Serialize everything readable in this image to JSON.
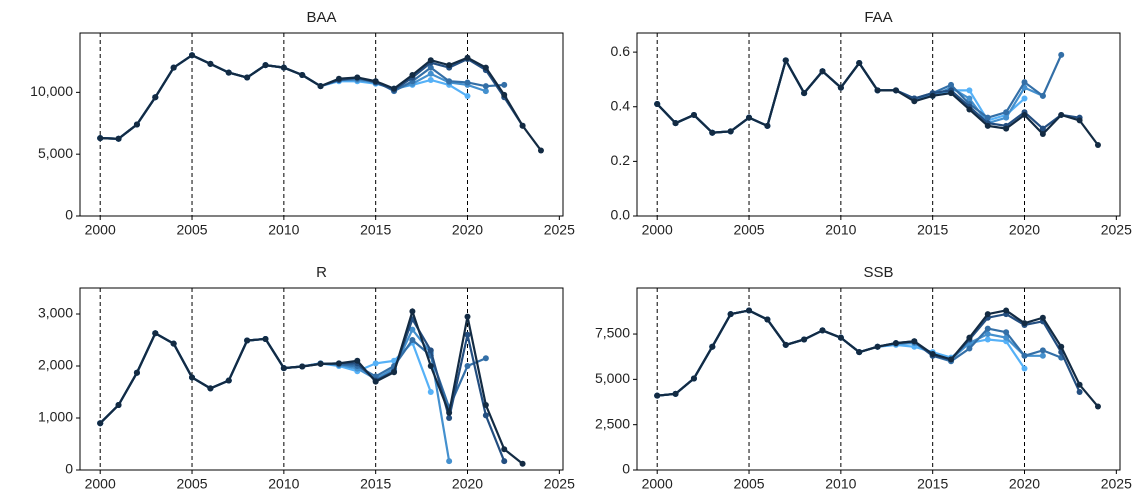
{
  "chart_data": [
    {
      "type": "line",
      "title": "BAA",
      "x": [
        2000,
        2001,
        2002,
        2003,
        2004,
        2005,
        2006,
        2007,
        2008,
        2009,
        2010,
        2011,
        2012,
        2013,
        2014,
        2015,
        2016,
        2017,
        2018,
        2019,
        2020,
        2021,
        2022,
        2023,
        2024
      ],
      "xlim": [
        1998.9,
        2025.2
      ],
      "xticks": [
        2000,
        2005,
        2010,
        2015,
        2020,
        2025
      ],
      "vlines": [
        2000,
        2005,
        2010,
        2015,
        2020
      ],
      "ylim": [
        0,
        14800
      ],
      "yticks": [
        0,
        {
          "value": 5000,
          "label": "5,000"
        },
        {
          "value": 10000,
          "label": "10,000"
        }
      ],
      "series": [
        {
          "color": "#56B1F7",
          "values": [
            6300,
            6250,
            7400,
            9600,
            12000,
            13000,
            12300,
            11600,
            11200,
            12200,
            12000,
            11400,
            10500,
            10900,
            10900,
            10700,
            10300,
            10600,
            11000,
            10600,
            9700,
            null,
            null,
            null,
            null
          ]
        },
        {
          "color": "#4490CE",
          "values": [
            6300,
            6250,
            7400,
            9600,
            12000,
            13000,
            12300,
            11600,
            11200,
            12200,
            12000,
            11400,
            10500,
            11000,
            11000,
            10800,
            10200,
            10700,
            11500,
            10800,
            10600,
            10100,
            null,
            null,
            null
          ]
        },
        {
          "color": "#336FA7",
          "values": [
            6300,
            6250,
            7400,
            9600,
            12000,
            13000,
            12300,
            11600,
            11200,
            12200,
            12000,
            11400,
            10500,
            11000,
            11100,
            10900,
            10100,
            10900,
            12000,
            10900,
            10800,
            10500,
            10600,
            null,
            null
          ]
        },
        {
          "color": "#234E80",
          "values": [
            6300,
            6250,
            7400,
            9600,
            12000,
            13000,
            12300,
            11600,
            11200,
            12200,
            12000,
            11400,
            10500,
            11000,
            11200,
            10800,
            10200,
            11200,
            12400,
            12000,
            12700,
            11800,
            9600,
            7300,
            null
          ]
        },
        {
          "color": "#132B43",
          "values": [
            6300,
            6250,
            7400,
            9600,
            12000,
            13000,
            12300,
            11600,
            11200,
            12200,
            12000,
            11400,
            10500,
            11100,
            11200,
            10900,
            10300,
            11400,
            12600,
            12200,
            12800,
            12000,
            9800,
            7300,
            5300
          ]
        }
      ]
    },
    {
      "type": "line",
      "title": "FAA",
      "x": [
        2000,
        2001,
        2002,
        2003,
        2004,
        2005,
        2006,
        2007,
        2008,
        2009,
        2010,
        2011,
        2012,
        2013,
        2014,
        2015,
        2016,
        2017,
        2018,
        2019,
        2020,
        2021,
        2022,
        2023,
        2024
      ],
      "xlim": [
        1998.9,
        2025.2
      ],
      "xticks": [
        2000,
        2005,
        2010,
        2015,
        2020,
        2025
      ],
      "vlines": [
        2000,
        2005,
        2010,
        2015,
        2020
      ],
      "ylim": [
        0,
        0.67
      ],
      "yticks": [
        {
          "value": 0,
          "label": "0.0"
        },
        0.2,
        0.4,
        0.6
      ],
      "series": [
        {
          "color": "#56B1F7",
          "values": [
            0.41,
            0.34,
            0.37,
            0.305,
            0.31,
            0.36,
            0.33,
            0.57,
            0.45,
            0.53,
            0.47,
            0.56,
            0.46,
            0.46,
            0.43,
            0.44,
            0.46,
            0.46,
            0.35,
            0.37,
            0.43,
            null,
            null,
            null,
            null
          ]
        },
        {
          "color": "#4490CE",
          "values": [
            0.41,
            0.34,
            0.37,
            0.305,
            0.31,
            0.36,
            0.33,
            0.57,
            0.45,
            0.53,
            0.47,
            0.56,
            0.46,
            0.46,
            0.43,
            0.44,
            0.47,
            0.43,
            0.34,
            0.36,
            0.47,
            0.44,
            null,
            null,
            null
          ]
        },
        {
          "color": "#336FA7",
          "values": [
            0.41,
            0.34,
            0.37,
            0.305,
            0.31,
            0.36,
            0.33,
            0.57,
            0.45,
            0.53,
            0.47,
            0.56,
            0.46,
            0.46,
            0.43,
            0.45,
            0.48,
            0.41,
            0.36,
            0.38,
            0.49,
            0.44,
            0.59,
            null,
            null
          ]
        },
        {
          "color": "#234E80",
          "values": [
            0.41,
            0.34,
            0.37,
            0.305,
            0.31,
            0.36,
            0.33,
            0.57,
            0.45,
            0.53,
            0.47,
            0.56,
            0.46,
            0.46,
            0.43,
            0.45,
            0.46,
            0.4,
            0.34,
            0.33,
            0.38,
            0.32,
            0.37,
            0.36,
            null
          ]
        },
        {
          "color": "#132B43",
          "values": [
            0.41,
            0.34,
            0.37,
            0.305,
            0.31,
            0.36,
            0.33,
            0.57,
            0.45,
            0.53,
            0.47,
            0.56,
            0.46,
            0.46,
            0.42,
            0.44,
            0.45,
            0.39,
            0.33,
            0.32,
            0.37,
            0.3,
            0.37,
            0.35,
            0.26
          ]
        }
      ]
    },
    {
      "type": "line",
      "title": "R",
      "x": [
        2000,
        2001,
        2002,
        2003,
        2004,
        2005,
        2006,
        2007,
        2008,
        2009,
        2010,
        2011,
        2012,
        2013,
        2014,
        2015,
        2016,
        2017,
        2018,
        2019,
        2020,
        2021,
        2022,
        2023,
        2024
      ],
      "xlim": [
        1998.9,
        2025.2
      ],
      "xticks": [
        2000,
        2005,
        2010,
        2015,
        2020,
        2025
      ],
      "vlines": [
        2000,
        2005,
        2010,
        2015,
        2020
      ],
      "ylim": [
        0,
        3500
      ],
      "yticks": [
        0,
        {
          "value": 1000,
          "label": "1,000"
        },
        {
          "value": 2000,
          "label": "2,000"
        },
        {
          "value": 3000,
          "label": "3,000"
        }
      ],
      "series": [
        {
          "color": "#56B1F7",
          "values": [
            900,
            1250,
            1870,
            2630,
            2430,
            1780,
            1570,
            1720,
            2490,
            2520,
            1960,
            1990,
            2050,
            2000,
            1900,
            2050,
            2100,
            2450,
            1500,
            null,
            null,
            null,
            null,
            null,
            null
          ]
        },
        {
          "color": "#4490CE",
          "values": [
            900,
            1250,
            1870,
            2630,
            2430,
            1780,
            1570,
            1720,
            2490,
            2520,
            1960,
            1990,
            2050,
            2020,
            1950,
            1750,
            1950,
            2700,
            2250,
            170,
            null,
            null,
            null,
            null,
            null
          ]
        },
        {
          "color": "#336FA7",
          "values": [
            900,
            1250,
            1870,
            2630,
            2430,
            1780,
            1570,
            1720,
            2490,
            2520,
            1960,
            1990,
            2050,
            2030,
            2000,
            1800,
            2000,
            2500,
            2200,
            1200,
            2000,
            2150,
            null,
            null,
            null
          ]
        },
        {
          "color": "#234E80",
          "values": [
            900,
            1250,
            1870,
            2630,
            2430,
            1780,
            1570,
            1720,
            2490,
            2520,
            1960,
            1990,
            2040,
            2050,
            2050,
            1720,
            1900,
            2900,
            2300,
            1000,
            2600,
            1050,
            170,
            null,
            null
          ]
        },
        {
          "color": "#132B43",
          "values": [
            900,
            1250,
            1870,
            2630,
            2430,
            1780,
            1570,
            1720,
            2490,
            2520,
            1960,
            1990,
            2040,
            2050,
            2100,
            1700,
            1880,
            3050,
            2000,
            1100,
            2950,
            1250,
            400,
            120,
            null
          ]
        }
      ]
    },
    {
      "type": "line",
      "title": "SSB",
      "x": [
        2000,
        2001,
        2002,
        2003,
        2004,
        2005,
        2006,
        2007,
        2008,
        2009,
        2010,
        2011,
        2012,
        2013,
        2014,
        2015,
        2016,
        2017,
        2018,
        2019,
        2020,
        2021,
        2022,
        2023,
        2024
      ],
      "xlim": [
        1998.9,
        2025.2
      ],
      "xticks": [
        2000,
        2005,
        2010,
        2015,
        2020,
        2025
      ],
      "vlines": [
        2000,
        2005,
        2010,
        2015,
        2020
      ],
      "ylim": [
        0,
        10040
      ],
      "yticks": [
        0,
        {
          "value": 2500,
          "label": "2,500"
        },
        {
          "value": 5000,
          "label": "5,000"
        },
        {
          "value": 7500,
          "label": "7,500"
        }
      ],
      "series": [
        {
          "color": "#56B1F7",
          "values": [
            4100,
            4200,
            5050,
            6800,
            8600,
            8800,
            8300,
            6900,
            7200,
            7700,
            7300,
            6500,
            6800,
            6900,
            6800,
            6500,
            6200,
            7000,
            7200,
            7100,
            5600,
            null,
            null,
            null,
            null
          ]
        },
        {
          "color": "#4490CE",
          "values": [
            4100,
            4200,
            5050,
            6800,
            8600,
            8800,
            8300,
            6900,
            7200,
            7700,
            7300,
            6500,
            6800,
            6950,
            7000,
            6400,
            6100,
            7000,
            7500,
            7300,
            6300,
            6300,
            null,
            null,
            null
          ]
        },
        {
          "color": "#336FA7",
          "values": [
            4100,
            4200,
            5050,
            6800,
            8600,
            8800,
            8300,
            6900,
            7200,
            7700,
            7300,
            6500,
            6800,
            7000,
            7050,
            6300,
            6000,
            6700,
            7800,
            7600,
            6300,
            6600,
            6200,
            null,
            null
          ]
        },
        {
          "color": "#234E80",
          "values": [
            4100,
            4200,
            5050,
            6800,
            8600,
            8800,
            8300,
            6900,
            7200,
            7700,
            7300,
            6500,
            6800,
            7000,
            7100,
            6300,
            6100,
            7200,
            8400,
            8600,
            8000,
            8200,
            6500,
            4300,
            null
          ]
        },
        {
          "color": "#132B43",
          "values": [
            4100,
            4200,
            5050,
            6800,
            8600,
            8800,
            8300,
            6900,
            7200,
            7700,
            7300,
            6500,
            6800,
            7000,
            7100,
            6400,
            6100,
            7300,
            8600,
            8800,
            8100,
            8400,
            6800,
            4700,
            3500
          ]
        }
      ]
    }
  ]
}
